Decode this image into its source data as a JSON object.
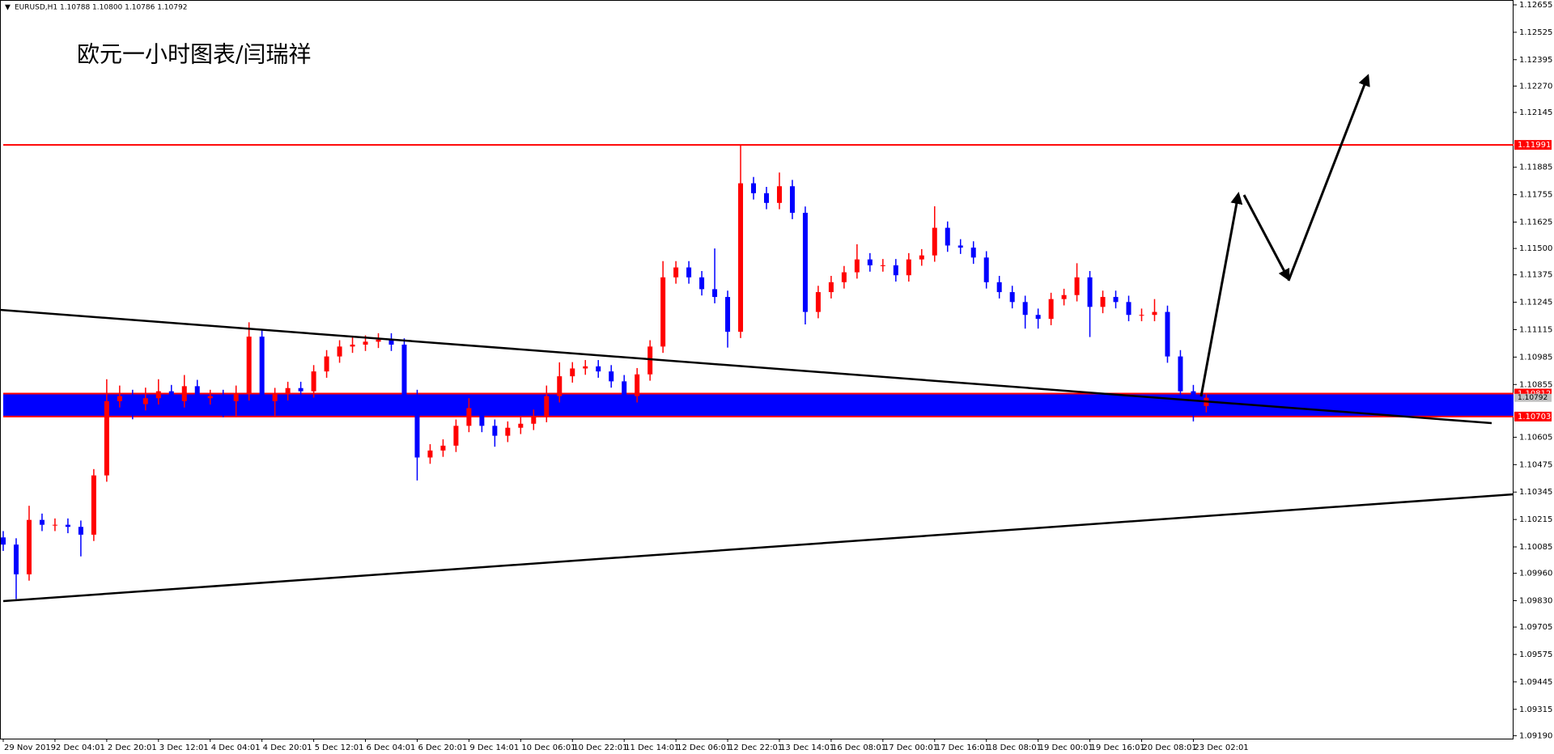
{
  "chart_data": {
    "type": "candlestick",
    "header": "EURUSD,H1  1.10788 1.10800 1.10786 1.10792",
    "annotation": "欧元一小时图表/闫瑞祥",
    "up_color": "#ff0000",
    "down_color": "#0000ff",
    "x": [
      0,
      4,
      8,
      12,
      16,
      20,
      24,
      28,
      32,
      36,
      40,
      44,
      48,
      52,
      56,
      60,
      64,
      68,
      72,
      76,
      80,
      84,
      88,
      92,
      96,
      100,
      104,
      108,
      112,
      116,
      120,
      124,
      128,
      132,
      136,
      140,
      144,
      148,
      152,
      156,
      160,
      164,
      168,
      172,
      176,
      180,
      184,
      188,
      192,
      196,
      200,
      204,
      208,
      212,
      216,
      220,
      224,
      228,
      232,
      236,
      240,
      244,
      248,
      252,
      256,
      260,
      264,
      268,
      272,
      276,
      280,
      284,
      288,
      292,
      296,
      300,
      304,
      308,
      312,
      316,
      320,
      324,
      328,
      332,
      336,
      340,
      344,
      348,
      352,
      356,
      360,
      364,
      368,
      372
    ],
    "open": [
      1.1013,
      1.10096,
      1.09955,
      1.10213,
      1.1019,
      1.1019,
      1.1018,
      1.10143,
      1.10424,
      1.10776,
      1.108,
      1.10762,
      1.1079,
      1.10823,
      1.10776,
      1.10847,
      1.1079,
      1.108,
      1.10776,
      1.10809,
      1.11082,
      1.10776,
      1.10809,
      1.10838,
      1.10823,
      1.10917,
      1.10988,
      1.11035,
      1.11044,
      1.11058,
      1.11068,
      1.11044,
      1.108,
      1.10509,
      1.10542,
      1.10565,
      1.10659,
      1.10743,
      1.10659,
      1.10612,
      1.1065,
      1.10669,
      1.10706,
      1.108,
      1.10894,
      1.10931,
      1.10941,
      1.10917,
      1.1087,
      1.108,
      1.10903,
      1.11035,
      1.11363,
      1.1141,
      1.11363,
      1.11307,
      1.1127,
      1.11105,
      1.11809,
      1.11762,
      1.11716,
      1.11795,
      1.11669,
      1.11199,
      1.11293,
      1.1134,
      1.11387,
      1.11448,
      1.1142,
      1.1142,
      1.11373,
      1.11448,
      1.11467,
      1.11598,
      1.11514,
      1.11504,
      1.11457,
      1.1134,
      1.11293,
      1.11246,
      1.11185,
      1.11166,
      1.1126,
      1.11279,
      1.11363,
      1.11223,
      1.1127,
      1.11246,
      1.11185,
      1.11185,
      1.11199,
      1.10988,
      1.10823,
      1.10753
    ],
    "high": [
      1.1016,
      1.10126,
      1.1028,
      1.10243,
      1.1022,
      1.1022,
      1.1021,
      1.10454,
      1.1088,
      1.1085,
      1.1083,
      1.1084,
      1.1088,
      1.10853,
      1.109,
      1.10877,
      1.1083,
      1.1083,
      1.1085,
      1.1115,
      1.11112,
      1.10839,
      1.10868,
      1.10868,
      1.10947,
      1.11018,
      1.11065,
      1.1108,
      1.11088,
      1.11098,
      1.11098,
      1.11074,
      1.1083,
      1.10572,
      1.10595,
      1.10689,
      1.1079,
      1.10773,
      1.10689,
      1.1068,
      1.10699,
      1.10736,
      1.1085,
      1.1096,
      1.10961,
      1.10971,
      1.10971,
      1.10947,
      1.109,
      1.10933,
      1.11065,
      1.1144,
      1.1144,
      1.1144,
      1.11393,
      1.115,
      1.113,
      1.11991,
      1.11839,
      1.11792,
      1.1186,
      1.11825,
      1.11699,
      1.11323,
      1.1137,
      1.11417,
      1.1152,
      1.11478,
      1.1145,
      1.1145,
      1.11478,
      1.11497,
      1.117,
      1.11628,
      1.11544,
      1.11534,
      1.11487,
      1.1137,
      1.11323,
      1.11276,
      1.11215,
      1.1129,
      1.11309,
      1.1143,
      1.11393,
      1.113,
      1.113,
      1.11276,
      1.11215,
      1.1126,
      1.11229,
      1.11018,
      1.10853,
      1.10812
    ],
    "low": [
      1.10066,
      1.09838,
      1.09925,
      1.1016,
      1.1016,
      1.1015,
      1.1004,
      1.10113,
      1.10394,
      1.10746,
      1.1069,
      1.10732,
      1.1076,
      1.1071,
      1.10746,
      1.1076,
      1.1076,
      1.107,
      1.107,
      1.10779,
      1.1072,
      1.107,
      1.10779,
      1.10793,
      1.10793,
      1.10887,
      1.10958,
      1.11005,
      1.11014,
      1.11028,
      1.11014,
      1.1077,
      1.104,
      1.10479,
      1.10512,
      1.10535,
      1.10629,
      1.10629,
      1.1056,
      1.10582,
      1.1062,
      1.10639,
      1.10676,
      1.1077,
      1.10864,
      1.10901,
      1.10887,
      1.1084,
      1.1071,
      1.1077,
      1.10873,
      1.11005,
      1.11333,
      1.11333,
      1.11277,
      1.1124,
      1.1103,
      1.11075,
      1.11732,
      1.11686,
      1.11686,
      1.11639,
      1.1114,
      1.11169,
      1.11263,
      1.1131,
      1.11357,
      1.1139,
      1.1139,
      1.11343,
      1.11343,
      1.11418,
      1.11437,
      1.11484,
      1.11474,
      1.11427,
      1.1131,
      1.11263,
      1.11216,
      1.1112,
      1.1112,
      1.11136,
      1.1123,
      1.11249,
      1.1108,
      1.11193,
      1.11216,
      1.11155,
      1.11155,
      1.11155,
      1.10958,
      1.10793,
      1.1068,
      1.10723
    ],
    "close": [
      1.10096,
      1.09955,
      1.10213,
      1.1019,
      1.1019,
      1.1018,
      1.10143,
      1.10424,
      1.10776,
      1.108,
      1.10762,
      1.1079,
      1.10823,
      1.10776,
      1.10847,
      1.1079,
      1.108,
      1.10776,
      1.10809,
      1.11082,
      1.10776,
      1.10809,
      1.10838,
      1.10823,
      1.10917,
      1.10988,
      1.11035,
      1.11044,
      1.11058,
      1.11068,
      1.11044,
      1.108,
      1.10509,
      1.10542,
      1.10565,
      1.10659,
      1.10743,
      1.10659,
      1.10612,
      1.1065,
      1.10669,
      1.10706,
      1.108,
      1.10894,
      1.10931,
      1.10941,
      1.10917,
      1.1087,
      1.108,
      1.10903,
      1.11035,
      1.11363,
      1.1141,
      1.11363,
      1.11307,
      1.1127,
      1.11105,
      1.11809,
      1.11762,
      1.11716,
      1.11795,
      1.11669,
      1.11199,
      1.11293,
      1.1134,
      1.11387,
      1.11448,
      1.1142,
      1.1142,
      1.11373,
      1.11448,
      1.11467,
      1.11598,
      1.11514,
      1.11504,
      1.11457,
      1.1134,
      1.11293,
      1.11246,
      1.11185,
      1.11166,
      1.1126,
      1.11279,
      1.11363,
      1.11223,
      1.1127,
      1.11246,
      1.11185,
      1.11185,
      1.11199,
      1.10988,
      1.10823,
      1.10753,
      1.10792
    ],
    "xlim": [
      0,
      467
    ],
    "ylim": [
      1.09176,
      1.12678
    ],
    "xticks": [
      {
        "value": 0,
        "label": "29 Nov 2019"
      },
      {
        "value": 16,
        "label": "2 Dec 04:01"
      },
      {
        "value": 32,
        "label": "2 Dec 20:01"
      },
      {
        "value": 48,
        "label": "3 Dec 12:01"
      },
      {
        "value": 64,
        "label": "4 Dec 04:01"
      },
      {
        "value": 80,
        "label": "4 Dec 20:01"
      },
      {
        "value": 96,
        "label": "5 Dec 12:01"
      },
      {
        "value": 112,
        "label": "6 Dec 04:01"
      },
      {
        "value": 128,
        "label": "6 Dec 20:01"
      },
      {
        "value": 144,
        "label": "9 Dec 14:01"
      },
      {
        "value": 160,
        "label": "10 Dec 06:01"
      },
      {
        "value": 176,
        "label": "10 Dec 22:01"
      },
      {
        "value": 192,
        "label": "11 Dec 14:01"
      },
      {
        "value": 208,
        "label": "12 Dec 06:01"
      },
      {
        "value": 224,
        "label": "12 Dec 22:01"
      },
      {
        "value": 240,
        "label": "13 Dec 14:01"
      },
      {
        "value": 256,
        "label": "16 Dec 08:01"
      },
      {
        "value": 272,
        "label": "17 Dec 00:01"
      },
      {
        "value": 288,
        "label": "17 Dec 16:01"
      },
      {
        "value": 304,
        "label": "18 Dec 08:01"
      },
      {
        "value": 320,
        "label": "19 Dec 00:01"
      },
      {
        "value": 336,
        "label": "19 Dec 16:01"
      },
      {
        "value": 352,
        "label": "20 Dec 08:01"
      },
      {
        "value": 368,
        "label": "23 Dec 02:01"
      }
    ],
    "yticks": [
      1.12655,
      1.12525,
      1.12395,
      {
        "value": 1.1227,
        "label": "1.12270"
      },
      1.12145,
      1.11885,
      1.11755,
      1.11625,
      {
        "value": 1.115,
        "label": "1.11500"
      },
      1.11375,
      1.11245,
      1.11115,
      1.10985,
      1.10855,
      1.10605,
      1.10475,
      1.10345,
      1.10215,
      1.10085,
      {
        "value": 1.0996,
        "label": "1.09960"
      },
      {
        "value": 1.0983,
        "label": "1.09830"
      },
      1.09705,
      1.09575,
      1.09445,
      1.09315,
      {
        "value": 1.0919,
        "label": "1.09190"
      }
    ],
    "hlines": [
      {
        "value": 1.11991,
        "color": "#ff0000"
      },
      {
        "value": 1.10812,
        "color": "#ff0000"
      },
      {
        "value": 1.10703,
        "color": "#ff0000"
      }
    ],
    "zone_color": "#0000ff",
    "last": 1.10792
  }
}
